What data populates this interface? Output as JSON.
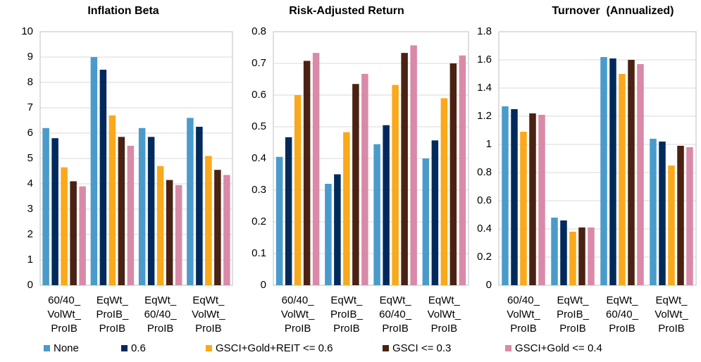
{
  "chart_data": [
    {
      "type": "bar",
      "title": "Inflation Beta",
      "categories": [
        "60/40_\nVolWt_\nProIB",
        "EqWt_\nProIB_\nProIB",
        "EqWt_\n60/40_\nProIB",
        "EqWt_\nVolWt_\nProIB"
      ],
      "series": [
        {
          "name": "None",
          "color": "#4a9bcb",
          "values": [
            6.2,
            9.0,
            6.2,
            6.6
          ]
        },
        {
          "name": "0.6",
          "color": "#002a5c",
          "values": [
            5.8,
            8.5,
            5.85,
            6.25
          ]
        },
        {
          "name": "GSCI+Gold+REIT <= 0.6",
          "color": "#f9a91b",
          "values": [
            4.65,
            6.7,
            4.7,
            5.1
          ]
        },
        {
          "name": "GSCI <= 0.3",
          "color": "#4a2112",
          "values": [
            4.1,
            5.85,
            4.15,
            4.55
          ]
        },
        {
          "name": "GSCI+Gold <= 0.4",
          "color": "#d98aa8",
          "values": [
            3.9,
            5.5,
            3.95,
            4.35
          ]
        }
      ],
      "ylim": [
        0,
        10
      ],
      "yticks": [
        0,
        1,
        2,
        3,
        4,
        5,
        6,
        7,
        8,
        9,
        10
      ],
      "grid": true
    },
    {
      "type": "bar",
      "title": "Risk-Adjusted Return",
      "categories": [
        "60/40_\nVolWt_\nProIB",
        "EqWt_\nProIB_\nProIB",
        "EqWt_\n60/40_\nProIB",
        "EqWt_\nVolWt_\nProIB"
      ],
      "series": [
        {
          "name": "None",
          "color": "#4a9bcb",
          "values": [
            0.405,
            0.32,
            0.445,
            0.4
          ]
        },
        {
          "name": "0.6",
          "color": "#002a5c",
          "values": [
            0.467,
            0.35,
            0.505,
            0.457
          ]
        },
        {
          "name": "GSCI+Gold+REIT <= 0.6",
          "color": "#f9a91b",
          "values": [
            0.6,
            0.483,
            0.632,
            0.59
          ]
        },
        {
          "name": "GSCI <= 0.3",
          "color": "#4a2112",
          "values": [
            0.708,
            0.635,
            0.733,
            0.7
          ]
        },
        {
          "name": "GSCI+Gold <= 0.4",
          "color": "#d98aa8",
          "values": [
            0.733,
            0.667,
            0.757,
            0.725
          ]
        }
      ],
      "ylim": [
        0,
        0.8
      ],
      "yticks": [
        0,
        0.1,
        0.2,
        0.3,
        0.4,
        0.5,
        0.6,
        0.7,
        0.8
      ],
      "grid": true
    },
    {
      "type": "bar",
      "title": "Turnover  (Annualized)",
      "categories": [
        "60/40_\nVolWt_\nProIB",
        "EqWt_\nProIB_\nProIB",
        "EqWt_\n60/40_\nProIB",
        "EqWt_\nVolWt_\nProIB"
      ],
      "series": [
        {
          "name": "None",
          "color": "#4a9bcb",
          "values": [
            1.27,
            0.48,
            1.62,
            1.04
          ]
        },
        {
          "name": "0.6",
          "color": "#002a5c",
          "values": [
            1.25,
            0.46,
            1.61,
            1.02
          ]
        },
        {
          "name": "GSCI+Gold+REIT <= 0.6",
          "color": "#f9a91b",
          "values": [
            1.09,
            0.38,
            1.5,
            0.85
          ]
        },
        {
          "name": "GSCI <= 0.3",
          "color": "#4a2112",
          "values": [
            1.22,
            0.41,
            1.6,
            0.99
          ]
        },
        {
          "name": "GSCI+Gold <= 0.4",
          "color": "#d98aa8",
          "values": [
            1.21,
            0.41,
            1.57,
            0.98
          ]
        }
      ],
      "ylim": [
        0,
        1.8
      ],
      "yticks": [
        0,
        0.2,
        0.4,
        0.6,
        0.8,
        1,
        1.2,
        1.4,
        1.6,
        1.8
      ],
      "grid": true
    }
  ]
}
